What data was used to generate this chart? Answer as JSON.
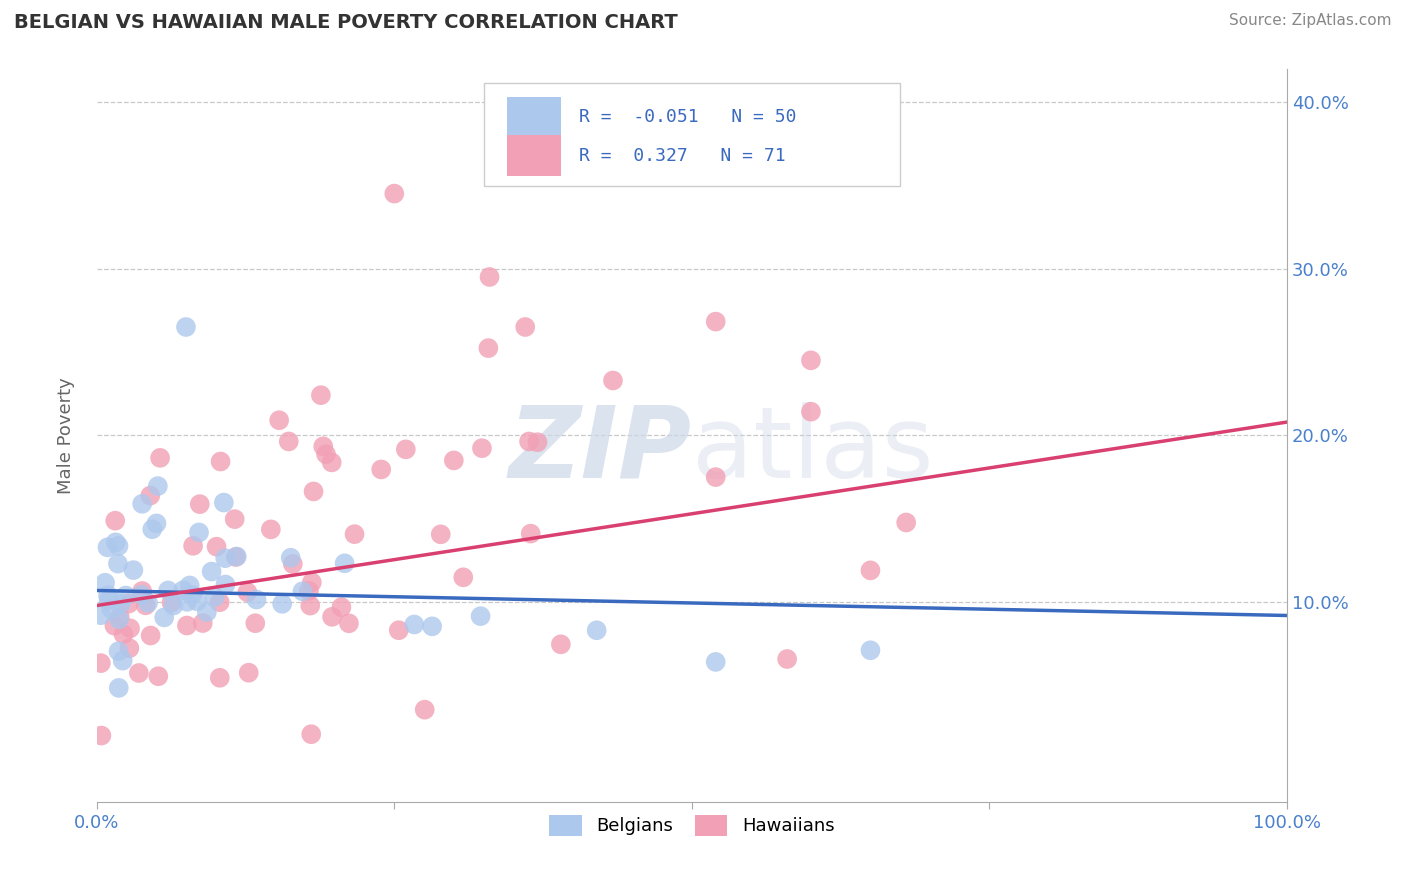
{
  "title": "BELGIAN VS HAWAIIAN MALE POVERTY CORRELATION CHART",
  "source": "Source: ZipAtlas.com",
  "ylabel": "Male Poverty",
  "xlim": [
    0,
    1.0
  ],
  "ylim": [
    -0.02,
    0.42
  ],
  "ytick_vals": [
    0.1,
    0.2,
    0.3,
    0.4
  ],
  "ytick_labels": [
    "10.0%",
    "20.0%",
    "30.0%",
    "40.0%"
  ],
  "xtick_vals": [
    0.0,
    0.25,
    0.5,
    0.75,
    1.0
  ],
  "xtick_labels": [
    "0.0%",
    "",
    "",
    "",
    "100.0%"
  ],
  "belgian_R": -0.051,
  "belgian_N": 50,
  "hawaiian_R": 0.327,
  "hawaiian_N": 71,
  "belgian_color": "#adc8ed",
  "hawaiian_color": "#f2a0b5",
  "belgian_line_color": "#3a6abf",
  "hawaiian_line_color": "#d94070",
  "watermark_color": "#cdd8e8",
  "background_color": "#ffffff",
  "grid_color": "#c8c8c8",
  "tick_label_color": "#4a80cc",
  "legend_text_color": "#3a6abf",
  "title_color": "#333333",
  "source_color": "#888888",
  "ylabel_color": "#666666",
  "seed": 99,
  "belgian_line_y0": 0.107,
  "belgian_line_y1": 0.092,
  "hawaiian_line_y0": 0.098,
  "hawaiian_line_y1": 0.208
}
